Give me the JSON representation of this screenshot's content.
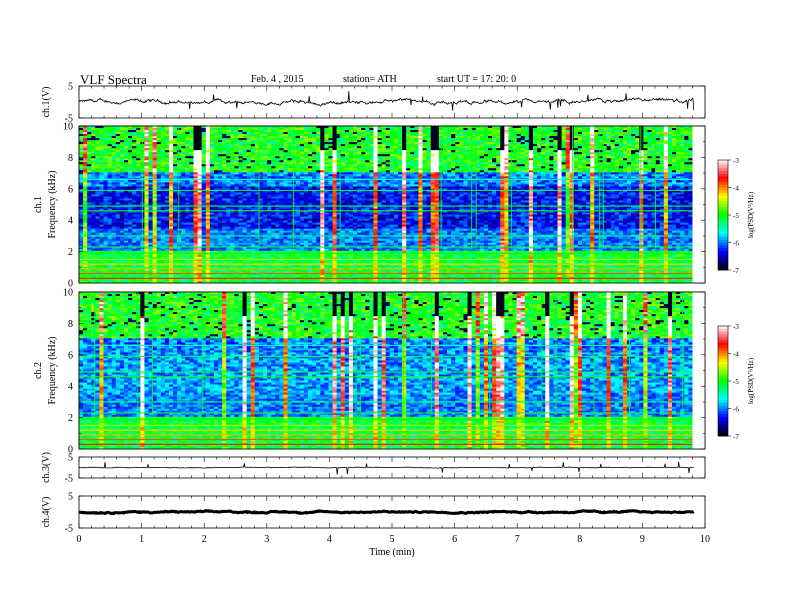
{
  "header": {
    "title": "VLF  Spectra",
    "date": "Feb. 4  , 2015",
    "station": "station= ATH",
    "start": "start  UT  =    17: 20: 0"
  },
  "colors": {
    "colormap": [
      "#000000",
      "#0000ff",
      "#00ffff",
      "#00ff00",
      "#ffff00",
      "#ff0000",
      "#ffffff"
    ]
  },
  "chart_data": [
    {
      "type": "line",
      "panel": "ch1-waveform",
      "ylabel": "ch.1(V)",
      "ylim": [
        -5,
        5
      ],
      "yticks": [
        "5",
        "-5"
      ],
      "xlim": [
        0,
        10
      ],
      "series": [
        {
          "baseline": 0,
          "noise_amplitude": 0.6
        }
      ]
    },
    {
      "type": "heatmap",
      "panel": "ch1-spectrogram",
      "ylabel": [
        "ch.1",
        "Frequency  (kHz)"
      ],
      "ylim": [
        0,
        10
      ],
      "yticks": [
        "0",
        "2",
        "4",
        "6",
        "8",
        "10"
      ],
      "xlim": [
        0,
        9.8
      ],
      "colorbar": {
        "label": "log(PSD(V²/Hz)",
        "range": [
          -7,
          -3
        ],
        "ticks": [
          "-3",
          "-4",
          "-5",
          "-6",
          "-7"
        ]
      }
    },
    {
      "type": "heatmap",
      "panel": "ch2-spectrogram",
      "ylabel": [
        "ch.2",
        "Frequency  (kHz)"
      ],
      "ylim": [
        0,
        10
      ],
      "yticks": [
        "0",
        "2",
        "4",
        "6",
        "8",
        "10"
      ],
      "xlim": [
        0,
        9.8
      ],
      "colorbar": {
        "label": "log(PSD(V²/Hz)",
        "range": [
          -7,
          -3
        ],
        "ticks": [
          "-3",
          "-4",
          "-5",
          "-6",
          "-7"
        ]
      }
    },
    {
      "type": "line",
      "panel": "ch3-waveform",
      "ylabel": "ch.3(V)",
      "ylim": [
        -5,
        5
      ],
      "yticks": [
        "5",
        "-5"
      ],
      "xlim": [
        0,
        10
      ],
      "series": [
        {
          "baseline": 0,
          "noise_amplitude": 0.15
        }
      ]
    },
    {
      "type": "line",
      "panel": "ch4-waveform",
      "ylabel": "ch.4(V)",
      "ylim": [
        -5,
        5
      ],
      "yticks": [
        "5",
        "-5"
      ],
      "xlim": [
        0,
        10
      ],
      "series": [
        {
          "baseline": 0,
          "noise_amplitude": 0.2
        }
      ]
    }
  ],
  "xaxis": {
    "label": "Time  (min)",
    "ticks": [
      "0",
      "1",
      "2",
      "3",
      "4",
      "5",
      "6",
      "7",
      "8",
      "9",
      "10"
    ]
  }
}
